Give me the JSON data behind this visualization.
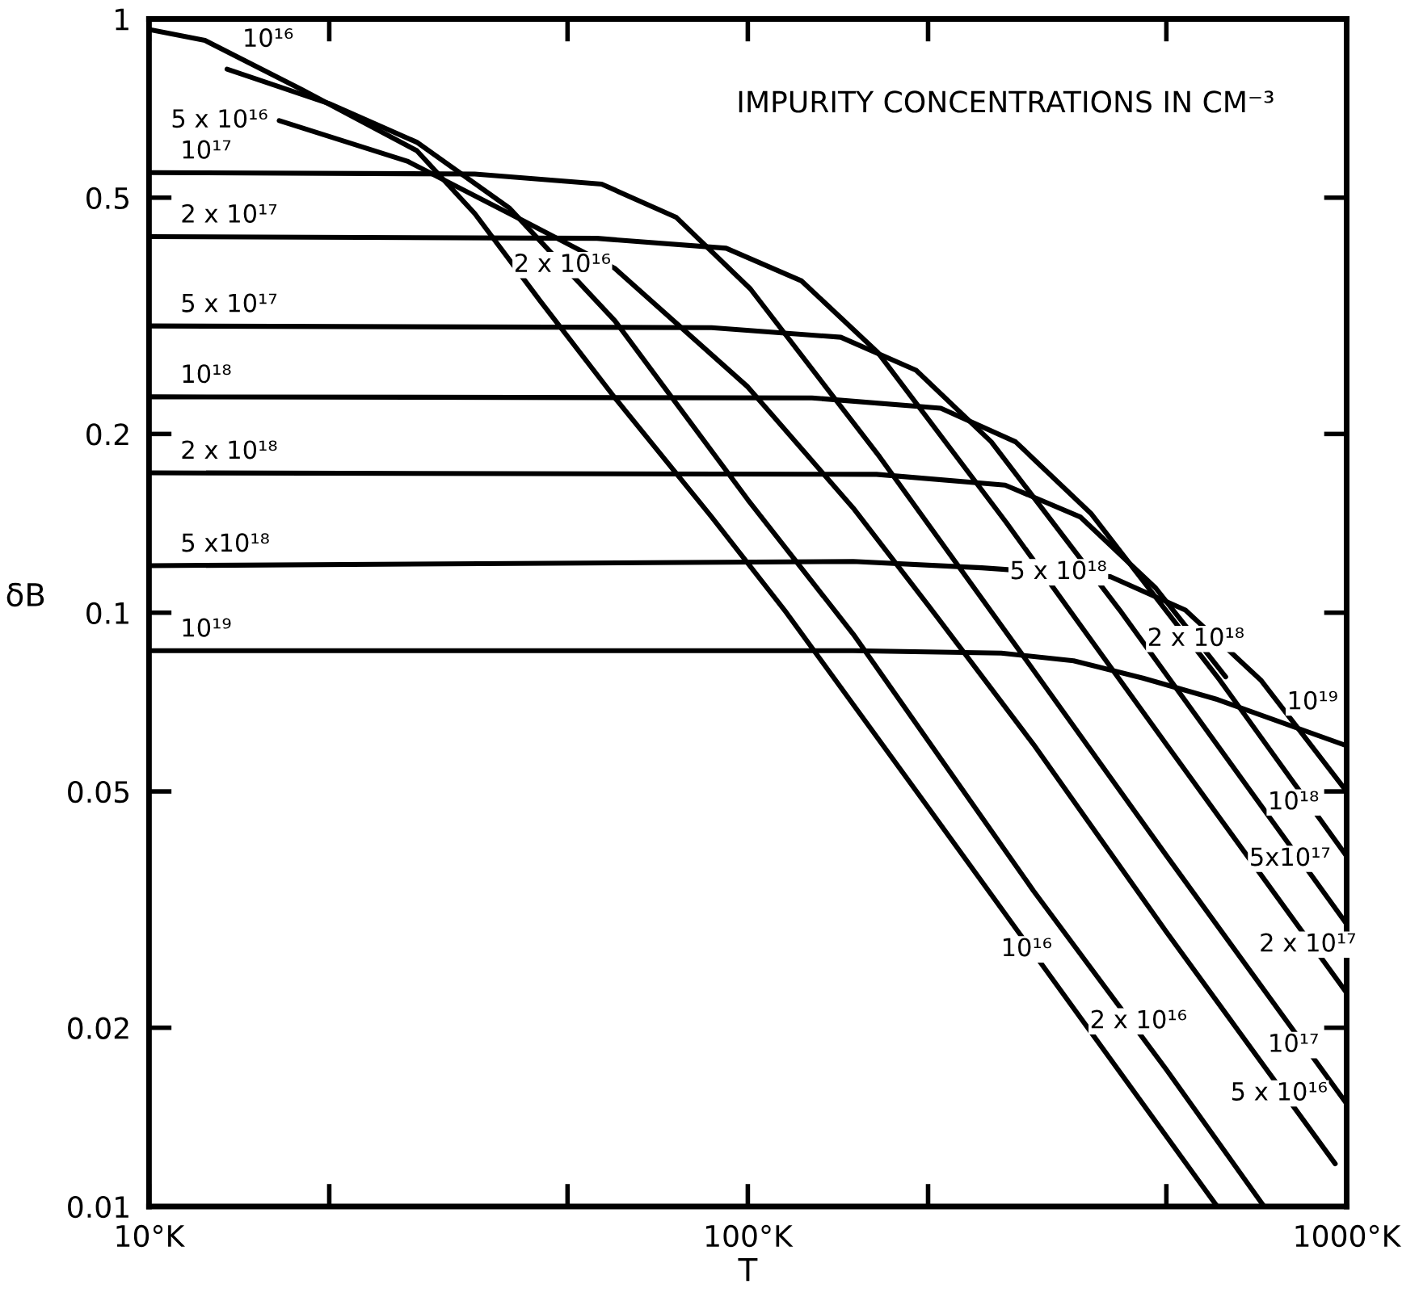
{
  "chart_data": {
    "type": "line",
    "title": "IMPURITY CONCENTRATIONS IN CM⁻³",
    "xlabel": "T",
    "ylabel": "δB",
    "log": "xy",
    "grid": false,
    "legend": false,
    "marker": "none",
    "line_style": "solid",
    "xlim": [
      10,
      1000
    ],
    "ylim": [
      0.01,
      1
    ],
    "xticks": [
      {
        "value": 10,
        "label": "10°K"
      },
      {
        "value": 20,
        "label": null
      },
      {
        "value": 50,
        "label": null
      },
      {
        "value": 100,
        "label": "100°K"
      },
      {
        "value": 200,
        "label": null
      },
      {
        "value": 500,
        "label": null
      },
      {
        "value": 1000,
        "label": "1000°K"
      }
    ],
    "yticks": [
      0.01,
      0.02,
      0.05,
      0.1,
      0.2,
      0.5,
      1
    ],
    "series": [
      {
        "color": "#000000",
        "x": [
          10,
          12.4,
          18,
          28,
          35,
          45,
          60,
          87,
          116,
          200,
          608
        ],
        "values": [
          0.96,
          0.92,
          0.76,
          0.6,
          0.47,
          0.335,
          0.23,
          0.145,
          0.1,
          0.047,
          0.01
        ]
      },
      {
        "color": "#000000",
        "x": [
          13.5,
          20,
          28,
          40,
          60,
          100,
          150,
          300,
          500,
          728
        ],
        "values": [
          0.823,
          0.72,
          0.62,
          0.48,
          0.31,
          0.155,
          0.092,
          0.034,
          0.017,
          0.01
        ]
      },
      {
        "name": "5 x 10¹⁶",
        "color": "#000000",
        "x": [
          16.5,
          27,
          40,
          60,
          100,
          150,
          200,
          300,
          500,
          957
        ],
        "values": [
          0.674,
          0.576,
          0.47,
          0.38,
          0.24,
          0.15,
          0.103,
          0.06,
          0.029,
          0.0118
        ]
      },
      {
        "name": "10¹⁷",
        "color": "#000000",
        "x": [
          10,
          35,
          57,
          76,
          101,
          166,
          300,
          500,
          1000
        ],
        "values": [
          0.551,
          0.548,
          0.527,
          0.463,
          0.351,
          0.183,
          0.08,
          0.039,
          0.0149
        ]
      },
      {
        "name": "2 x 10¹⁷",
        "color": "#000000",
        "x": [
          10,
          56,
          92,
          123,
          165,
          270,
          500,
          1000
        ],
        "values": [
          0.43,
          0.427,
          0.411,
          0.362,
          0.274,
          0.142,
          0.06,
          0.0229
        ]
      },
      {
        "name": "5 x 10¹⁷",
        "color": "#000000",
        "x": [
          10,
          87,
          143,
          191,
          255,
          418,
          1000
        ],
        "values": [
          0.304,
          0.302,
          0.291,
          0.256,
          0.194,
          0.101,
          0.0299
        ]
      },
      {
        "name": "10¹⁸",
        "color": "#000000",
        "x": [
          10,
          128,
          210,
          280,
          374,
          614,
          1000
        ],
        "values": [
          0.231,
          0.23,
          0.221,
          0.194,
          0.147,
          0.077,
          0.0389
        ]
      },
      {
        "name": "2 x 10¹⁸",
        "color": "#000000",
        "x": [
          10,
          164,
          269,
          359,
          480,
          628
        ],
        "values": [
          0.172,
          0.171,
          0.164,
          0.145,
          0.11,
          0.078
        ]
      },
      {
        "name": "5 x10¹⁸",
        "color": "#000000",
        "x": [
          10,
          150,
          246,
          403,
          538,
          719,
          1000
        ],
        "values": [
          0.12,
          0.122,
          0.119,
          0.115,
          0.101,
          0.077,
          0.05
        ]
      },
      {
        "name": "10¹⁹",
        "color": "#000000",
        "x": [
          10,
          150,
          265,
          350,
          457,
          609,
          1000
        ],
        "values": [
          0.0863,
          0.0863,
          0.0855,
          0.083,
          0.0776,
          0.0714,
          0.0597
        ]
      }
    ],
    "annotations": [
      {
        "text": "10¹⁶",
        "x": 15.8,
        "y": 0.922
      },
      {
        "text": "2 x 10¹⁶",
        "x": 49,
        "y": 0.385
      },
      {
        "text": "2 x 10¹⁸",
        "x": 560,
        "y": 0.0903
      },
      {
        "text": "5 x 10¹⁸",
        "x": 330,
        "y": 0.117
      },
      {
        "text": "10¹⁹",
        "x": 877,
        "y": 0.0706
      },
      {
        "text": "10¹⁸",
        "x": 815,
        "y": 0.0479
      },
      {
        "text": "5x10¹⁷",
        "x": 804,
        "y": 0.0385
      },
      {
        "text": "2 x 10¹⁷",
        "x": 861,
        "y": 0.0276
      },
      {
        "text": "10¹⁷",
        "x": 815,
        "y": 0.0187
      },
      {
        "text": "5 x 10¹⁶",
        "x": 771,
        "y": 0.0155
      },
      {
        "text": "10¹⁶",
        "x": 292,
        "y": 0.0271
      },
      {
        "text": "2 x 10¹⁶",
        "x": 449,
        "y": 0.0205
      }
    ]
  }
}
